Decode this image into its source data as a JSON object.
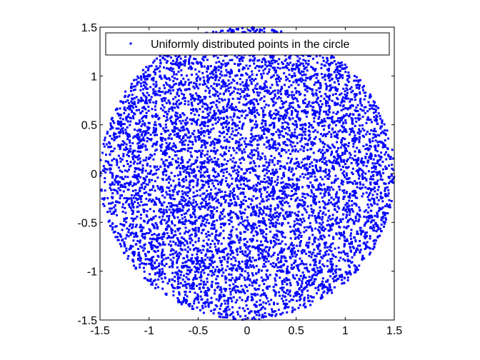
{
  "chart_data": {
    "type": "scatter",
    "title": "",
    "xlabel": "",
    "ylabel": "",
    "xlim": [
      -1.5,
      1.5
    ],
    "ylim": [
      -1.5,
      1.5
    ],
    "xticks": [
      -1.5,
      -1,
      -0.5,
      0,
      0.5,
      1,
      1.5
    ],
    "yticks": [
      -1.5,
      -1,
      -0.5,
      0,
      0.5,
      1,
      1.5
    ],
    "xtick_labels": [
      "-1.5",
      "-1",
      "-0.5",
      "0",
      "0.5",
      "1",
      "1.5"
    ],
    "ytick_labels": [
      "-1.5",
      "-1",
      "-0.5",
      "0",
      "0.5",
      "1",
      "1.5"
    ],
    "grid": false,
    "legend": {
      "position": "top-right",
      "entries": [
        "Uniformly distributed points in the circle"
      ]
    },
    "series": [
      {
        "name": "Uniformly distributed points in the circle",
        "color": "#0000ff",
        "marker": "point",
        "distribution": {
          "shape": "disk",
          "center": [
            0,
            0
          ],
          "radius": 1.5,
          "count": 7000
        }
      }
    ]
  }
}
